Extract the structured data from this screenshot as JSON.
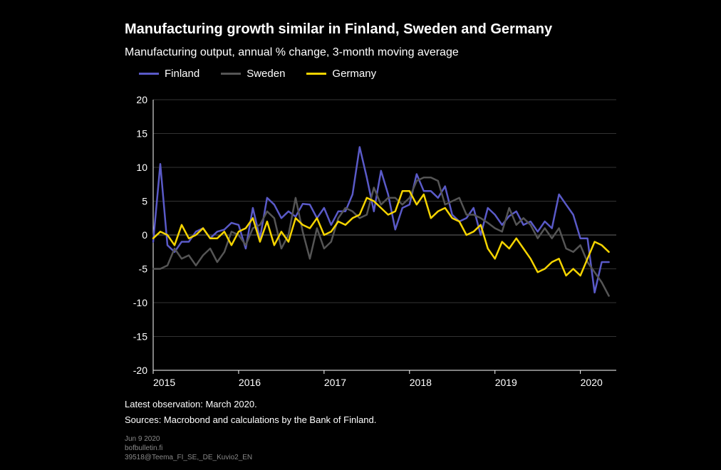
{
  "title": "Manufacturing growth similar in Finland, Sweden and Germany",
  "subtitle": "Manufacturing output, annual % change, 3-month moving average",
  "legend": [
    {
      "label": "Finland",
      "color": "#5a5ac8"
    },
    {
      "label": "Sweden",
      "color": "#555555"
    },
    {
      "label": "Germany",
      "color": "#f5d400"
    }
  ],
  "footnote": "Latest observation: March 2020.",
  "sources": "Sources: Macrobond and calculations by the Bank of Finland.",
  "meta_date": "Jun 9 2020",
  "meta_site": "bofbulletin.fi",
  "meta_id": "39518@Teema_FI_SE,_DE_Kuvio2_EN",
  "chart": {
    "type": "line",
    "background_color": "#000000",
    "grid_color": "#333333",
    "axis_color": "#ffffff",
    "text_color": "#ffffff",
    "line_width": 2.5,
    "x": {
      "start_year": 2015,
      "end_year": 2020.42,
      "tick_years": [
        2015,
        2016,
        2017,
        2018,
        2019,
        2020
      ],
      "tick_label_fontsize": 14
    },
    "y": {
      "min": -20,
      "max": 20,
      "ticks": [
        -20,
        -15,
        -10,
        -5,
        0,
        5,
        10,
        15,
        20
      ],
      "tick_label_fontsize": 14
    },
    "series": [
      {
        "name": "Finland",
        "color": "#5a5ac8",
        "values": [
          -1.0,
          10.5,
          -1.5,
          -2.5,
          -1.0,
          -1.0,
          0.5,
          1.0,
          -0.5,
          0.5,
          0.8,
          1.8,
          1.5,
          -2.0,
          4.0,
          -0.5,
          5.5,
          4.5,
          2.5,
          3.5,
          2.7,
          4.6,
          4.5,
          2.5,
          4.0,
          1.5,
          3.5,
          3.5,
          6.0,
          13.0,
          8.5,
          3.5,
          9.5,
          6.0,
          0.8,
          4.0,
          4.5,
          9.0,
          6.5,
          6.5,
          5.5,
          7.2,
          3.0,
          2.0,
          2.5,
          4.0,
          0.0,
          4.0,
          3.0,
          1.5,
          2.8,
          3.5,
          1.5,
          2.0,
          0.5,
          2.0,
          1.0,
          6.0,
          4.5,
          3.0,
          -0.5,
          -0.5,
          -8.5,
          -4.0,
          -4.0
        ]
      },
      {
        "name": "Sweden",
        "color": "#555555",
        "values": [
          -5.0,
          -5.0,
          -4.5,
          -2.0,
          -3.5,
          -3.0,
          -4.5,
          -3.0,
          -2.0,
          -4.0,
          -2.5,
          0.5,
          0.0,
          -1.5,
          1.0,
          1.5,
          3.5,
          2.5,
          -2.0,
          0.0,
          5.5,
          0.5,
          -3.5,
          1.0,
          -2.0,
          -1.0,
          2.5,
          4.0,
          3.5,
          2.5,
          3.0,
          7.0,
          4.5,
          5.5,
          5.5,
          4.5,
          5.5,
          8.0,
          8.5,
          8.5,
          8.0,
          4.5,
          5.0,
          5.5,
          3.0,
          3.0,
          2.5,
          1.8,
          1.0,
          0.5,
          4.0,
          1.5,
          2.5,
          1.5,
          -0.5,
          1.0,
          -0.5,
          1.0,
          -2.0,
          -2.5,
          -1.5,
          -4.0,
          -5.5,
          -7.0,
          -9.0
        ]
      },
      {
        "name": "Germany",
        "color": "#f5d400",
        "values": [
          -0.5,
          0.5,
          0.0,
          -1.5,
          1.5,
          -0.5,
          0.0,
          1.0,
          -0.5,
          -0.5,
          0.5,
          -1.5,
          0.5,
          1.0,
          2.5,
          -1.0,
          2.0,
          -1.5,
          0.5,
          -1.0,
          2.5,
          1.5,
          1.0,
          2.5,
          0.0,
          0.5,
          2.0,
          1.5,
          2.5,
          3.0,
          5.5,
          5.0,
          4.0,
          3.0,
          3.5,
          6.5,
          6.5,
          4.5,
          6.0,
          2.5,
          3.5,
          4.0,
          2.5,
          2.0,
          0.0,
          0.5,
          1.5,
          -2.0,
          -3.5,
          -1.0,
          -2.0,
          -0.5,
          -2.0,
          -3.5,
          -5.5,
          -5.0,
          -4.0,
          -3.5,
          -6.0,
          -5.0,
          -6.0,
          -3.5,
          -1.0,
          -1.5,
          -2.5
        ]
      }
    ]
  }
}
